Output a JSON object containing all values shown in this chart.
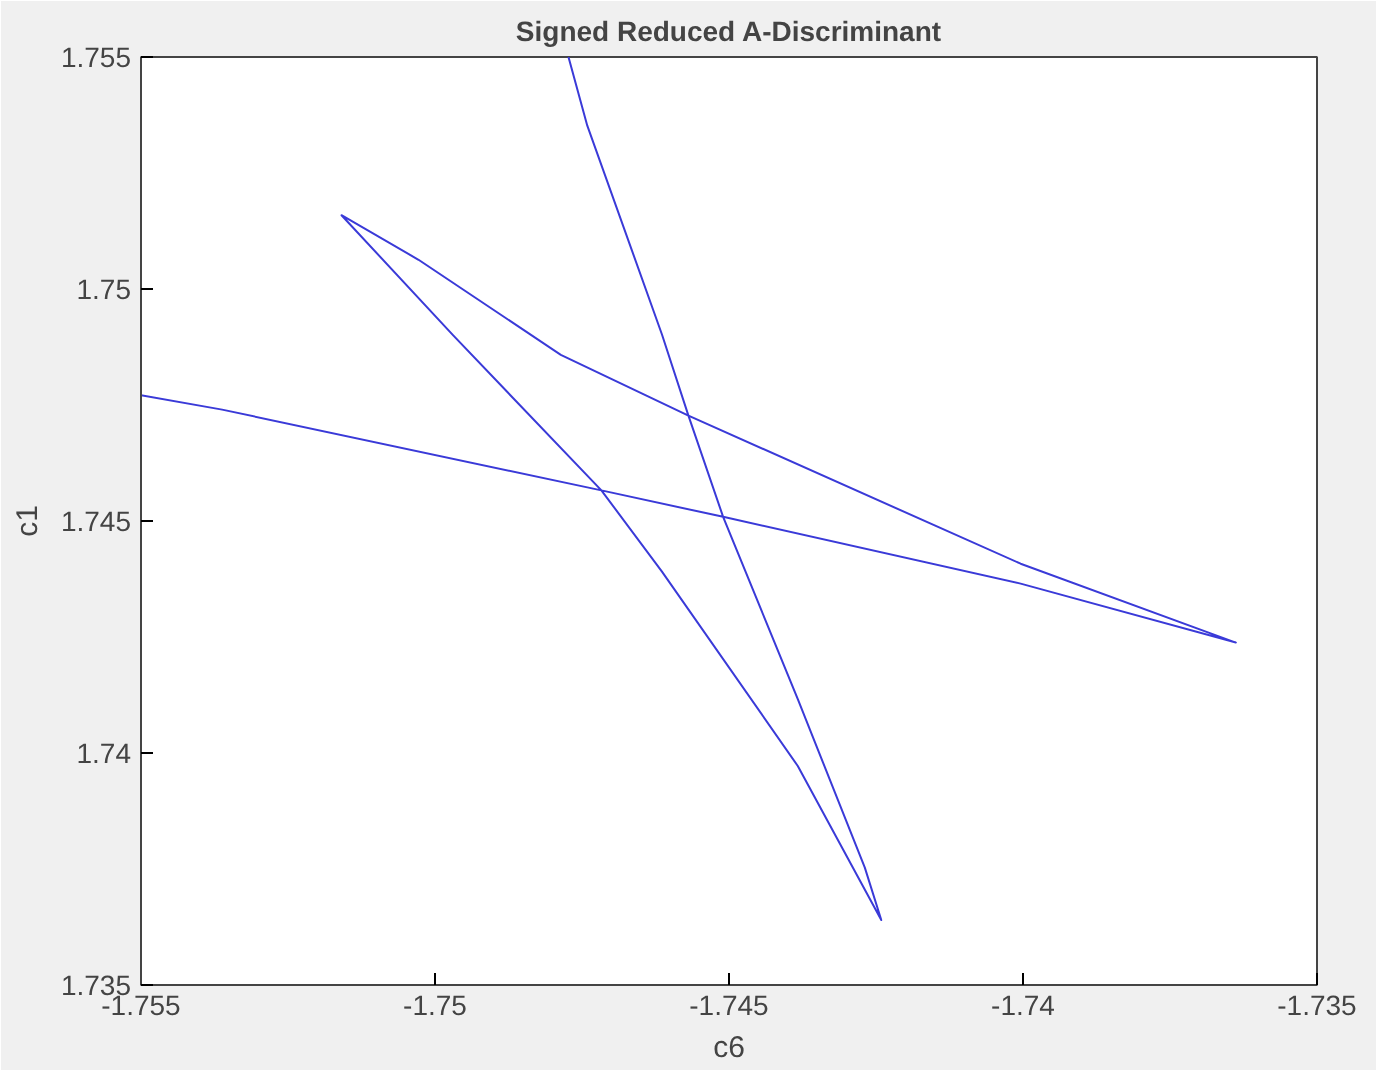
{
  "chart_data": {
    "type": "line",
    "title": "Signed Reduced A-Discriminant",
    "xlabel": "c6",
    "ylabel": "c1",
    "x": [
      -1.755,
      -1.75362,
      -1.74717,
      -1.7451,
      -1.74004,
      -1.73638,
      -1.74004,
      -1.74569,
      -1.74786,
      -1.75028,
      -1.75159,
      -1.74969,
      -1.74717,
      -1.74614,
      -1.74383,
      -1.74241,
      -1.74269,
      -1.74383,
      -1.7451,
      -1.74569,
      -1.74614,
      -1.74741,
      -1.74773
    ],
    "series": [
      {
        "color": "#3a3ad8",
        "values": [
          1.74771,
          1.7474,
          1.74566,
          1.74509,
          1.74365,
          1.74238,
          1.74408,
          1.74727,
          1.74858,
          1.75063,
          1.75159,
          1.749,
          1.74566,
          1.74391,
          1.73972,
          1.7364,
          1.73753,
          1.74116,
          1.74509,
          1.74727,
          1.74902,
          1.75352,
          1.755
        ]
      }
    ],
    "xlim": [
      -1.755,
      -1.735
    ],
    "ylim": [
      1.735,
      1.755
    ],
    "xticks": [
      -1.755,
      -1.75,
      -1.745,
      -1.74,
      -1.735
    ],
    "yticks": [
      1.735,
      1.74,
      1.745,
      1.75,
      1.755
    ],
    "grid": false,
    "line_style": "solid"
  }
}
